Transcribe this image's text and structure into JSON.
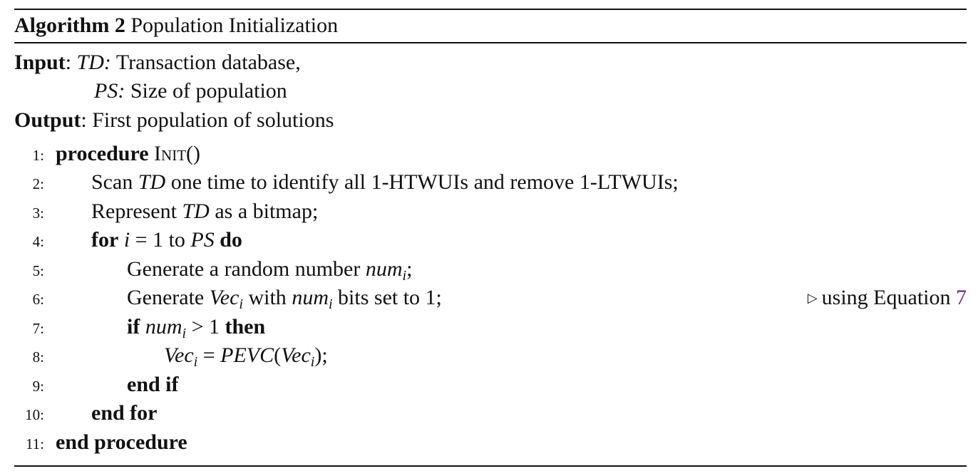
{
  "algorithm": {
    "label": "Algorithm 2",
    "title": "Population Initialization"
  },
  "input": {
    "label": "Input",
    "param1_name": "TD:",
    "param1_desc": "Transaction database,",
    "param2_name": "PS:",
    "param2_desc": "Size of population"
  },
  "output": {
    "label": "Output",
    "desc": "First population of solutions"
  },
  "lines": [
    {
      "num": "1:",
      "keyword": "procedure",
      "name": "Init",
      "args": "()"
    },
    {
      "num": "2:",
      "pre": "Scan ",
      "var": "TD",
      "post": " one time to identify all 1-HTWUIs and remove 1-LTWUIs;"
    },
    {
      "num": "3:",
      "pre": "Represent ",
      "var": "TD",
      "post": " as a bitmap;"
    },
    {
      "num": "4:",
      "kw1": "for",
      "var1": "i",
      "mid": " = 1 to ",
      "var2": "PS",
      "kw2": "do"
    },
    {
      "num": "5:",
      "pre": "Generate a random number ",
      "var": "num",
      "sub": "i",
      "post": ";"
    },
    {
      "num": "6:",
      "pre": "Generate ",
      "var": "Vec",
      "sub": "i",
      "mid": " with ",
      "var2": "num",
      "sub2": "i",
      "post": " bits set to 1;",
      "comment": "using Equation",
      "comment_ref": "7"
    },
    {
      "num": "7:",
      "kw1": "if",
      "var": "num",
      "sub": "i",
      "mid": " > 1 ",
      "kw2": "then"
    },
    {
      "num": "8:",
      "var": "Vec",
      "sub": "i",
      "mid": " = ",
      "func": "PEVC",
      "open": "(",
      "var2": "Vec",
      "sub2": "i",
      "close": ");"
    },
    {
      "num": "9:",
      "keyword": "end if"
    },
    {
      "num": "10:",
      "keyword": "end for"
    },
    {
      "num": "11:",
      "keyword": "end procedure"
    }
  ]
}
